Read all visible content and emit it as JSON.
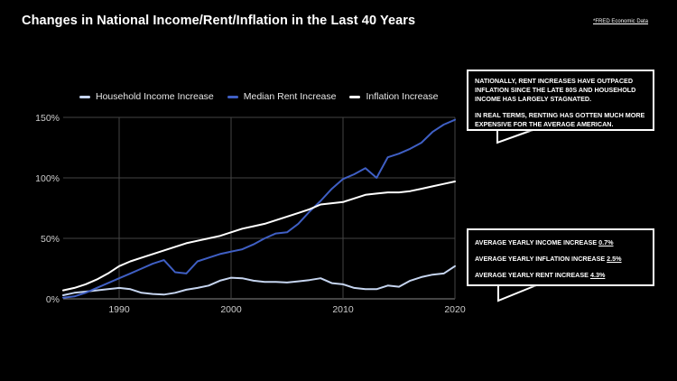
{
  "header": {
    "title": "Changes in National Income/Rent/Inflation in the Last 40 Years",
    "source": "*FRED Economic Data"
  },
  "callouts": {
    "top": {
      "line1": "NATIONALLY, RENT INCREASES HAVE OUTPACED INFLATION SINCE THE LATE 80S AND HOUSEHOLD INCOME HAS LARGELY STAGNATED.",
      "line2": "IN REAL TERMS, RENTING HAS GOTTEN MUCH MORE EXPENSIVE FOR THE AVERAGE AMERICAN."
    },
    "bottom": {
      "income_label": "AVERAGE YEARLY INCOME INCREASE",
      "income_value": "0.7%",
      "inflation_label": "AVERAGE YEARLY INFLATION INCREASE",
      "inflation_value": "2.5%",
      "rent_label": "AVERAGE YEARLY RENT INCREASE",
      "rent_value": "4.3%"
    }
  },
  "colors": {
    "income": "#c6d5f0",
    "rent": "#3f5fc4",
    "inflation": "#ffffff",
    "grid": "#444444",
    "axis_text": "#cccccc"
  },
  "chart_data": {
    "type": "line",
    "title": "Changes in National Income/Rent/Inflation in the Last 40 Years",
    "xlim": [
      1985,
      2020
    ],
    "ylim": [
      0,
      150
    ],
    "x_ticks": [
      "1990",
      "2000",
      "2010",
      "2020"
    ],
    "y_ticks": [
      "0%",
      "50%",
      "100%",
      "150%"
    ],
    "x_tick_values": [
      1990,
      2000,
      2010,
      2020
    ],
    "y_tick_values": [
      0,
      50,
      100,
      150
    ],
    "grid": true,
    "legend_position": "top-left",
    "x": [
      1985,
      1986,
      1987,
      1988,
      1989,
      1990,
      1991,
      1992,
      1993,
      1994,
      1995,
      1996,
      1997,
      1998,
      1999,
      2000,
      2001,
      2002,
      2003,
      2004,
      2005,
      2006,
      2007,
      2008,
      2009,
      2010,
      2011,
      2012,
      2013,
      2014,
      2015,
      2016,
      2017,
      2018,
      2019,
      2020
    ],
    "series": [
      {
        "name": "Household Income Increase",
        "key": "income",
        "values": [
          3,
          5,
          6,
          7,
          8,
          9,
          8,
          5,
          4,
          3.5,
          5,
          7.5,
          9,
          11,
          15,
          17.5,
          17,
          15,
          14,
          14,
          13.5,
          14.5,
          15.5,
          17,
          13,
          12,
          9,
          8,
          8,
          11,
          10,
          15,
          18,
          20,
          21,
          27
        ]
      },
      {
        "name": "Median Rent Increase",
        "key": "rent",
        "values": [
          1,
          2,
          5,
          9,
          13,
          17,
          21,
          25,
          29,
          32,
          22,
          21,
          31,
          34,
          37,
          39,
          41,
          45,
          50,
          54,
          55,
          62,
          72,
          81,
          91,
          99,
          103,
          108,
          100,
          117,
          120,
          124,
          129,
          138,
          144,
          148
        ]
      },
      {
        "name": "Inflation Increase",
        "key": "inflation",
        "values": [
          7,
          9,
          12,
          16,
          21,
          27,
          31,
          34,
          37,
          40,
          43,
          46,
          48,
          50,
          52,
          55,
          58,
          60,
          62,
          65,
          68,
          71,
          74,
          78,
          79,
          80,
          83,
          86,
          87,
          88,
          88,
          89,
          91,
          93,
          95,
          97
        ]
      }
    ]
  }
}
